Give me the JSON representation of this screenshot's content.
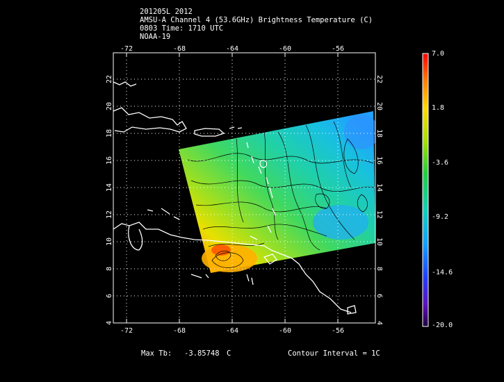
{
  "header": {
    "line1": "201205L 2012",
    "line2": "AMSU-A Channel 4 (53.6GHz) Brightness Temperature (C)",
    "line3": "0803 Time: 1710 UTC",
    "line4": "NOAA-19"
  },
  "map": {
    "lon_ticks": [
      "-72",
      "-68",
      "-64",
      "-60",
      "-56"
    ],
    "lat_ticks": [
      "6",
      "8",
      "10",
      "12",
      "14",
      "16",
      "18",
      "20",
      "22"
    ],
    "lat_bottom_label": "4",
    "lon_range": [
      -73.5,
      -53.5
    ],
    "lat_range": [
      4,
      24
    ],
    "grid": true
  },
  "colorbar": {
    "labels": [
      "7.0",
      "1.8",
      "-3.6",
      "-9.2",
      "-14.6",
      "-20.0"
    ],
    "min": -20.0,
    "max": 7.0
  },
  "footer": {
    "max_tb_label": "Max Tb:",
    "max_tb_value": "-3.85748",
    "max_tb_unit": "C",
    "contour_interval": "Contour Interval = 1C"
  }
}
